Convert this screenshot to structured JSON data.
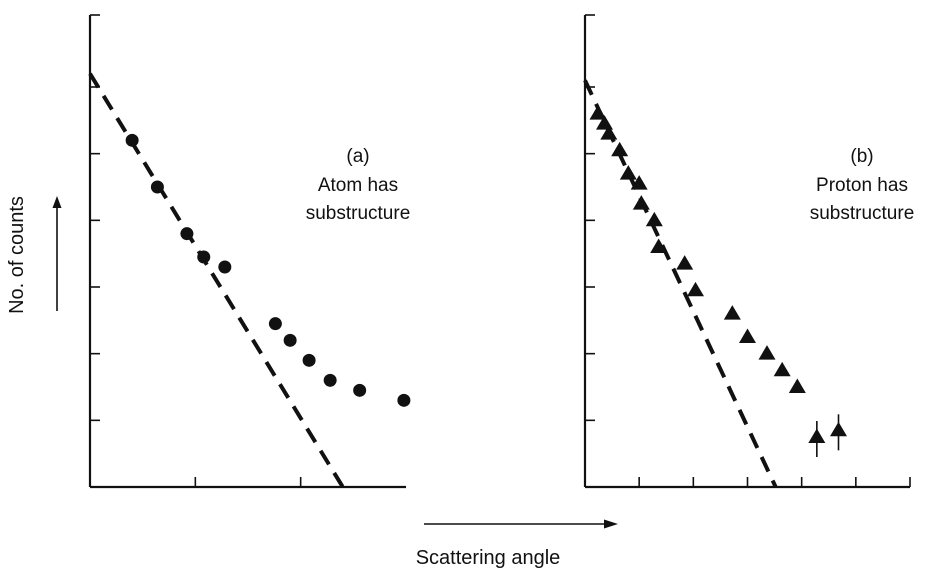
{
  "figure": {
    "xlabel": "Scattering angle",
    "ylabel": "No. of counts"
  },
  "chart_data": [
    {
      "type": "scatter",
      "panel_label": "(a)",
      "annotation_lines": [
        "Atom has",
        "substructure"
      ],
      "xlim": [
        0,
        7.5
      ],
      "ylim": [
        0,
        6
      ],
      "x_ticks": [
        2.5,
        5
      ],
      "y_ticks": [
        1,
        2,
        3,
        4,
        5,
        6
      ],
      "grid": false,
      "marker": "circle",
      "series": [
        {
          "points": [
            [
              1.0,
              5.2
            ],
            [
              1.6,
              4.5
            ],
            [
              2.3,
              3.8
            ],
            [
              2.7,
              3.45
            ],
            [
              3.2,
              3.3
            ],
            [
              4.4,
              2.45
            ],
            [
              4.75,
              2.2
            ],
            [
              5.2,
              1.9
            ],
            [
              5.7,
              1.6
            ],
            [
              6.4,
              1.45
            ],
            [
              7.45,
              1.3
            ]
          ]
        }
      ],
      "fit_line": {
        "style": "dashed",
        "points": [
          [
            0,
            6.2
          ],
          [
            6.0,
            0
          ]
        ]
      }
    },
    {
      "type": "scatter",
      "panel_label": "(b)",
      "annotation_lines": [
        "Proton has",
        "substructure"
      ],
      "xlim": [
        0,
        7.5
      ],
      "ylim": [
        0,
        6
      ],
      "x_ticks": [
        1.25,
        2.5,
        3.75,
        5,
        6.25,
        7.5
      ],
      "y_ticks": [
        1,
        2,
        3,
        4,
        5,
        6
      ],
      "grid": false,
      "marker": "triangle",
      "series": [
        {
          "points": [
            [
              0.3,
              5.6
            ],
            [
              0.45,
              5.45
            ],
            [
              0.55,
              5.3
            ],
            [
              0.8,
              5.05
            ],
            [
              1.0,
              4.7
            ],
            [
              1.25,
              4.55
            ],
            [
              1.3,
              4.25
            ],
            [
              1.6,
              4.0
            ],
            [
              1.7,
              3.6
            ],
            [
              2.3,
              3.35
            ],
            [
              2.55,
              2.95
            ],
            [
              3.4,
              2.6
            ],
            [
              3.75,
              2.25
            ],
            [
              4.2,
              2.0
            ],
            [
              4.55,
              1.75
            ],
            [
              4.9,
              1.5
            ],
            [
              5.35,
              0.75
            ],
            [
              5.85,
              0.85
            ]
          ],
          "lower_limit_points": [
            [
              5.35,
              0.75
            ],
            [
              5.85,
              0.85
            ]
          ]
        }
      ],
      "fit_line": {
        "style": "dashed",
        "points": [
          [
            0,
            6.1
          ],
          [
            4.4,
            0
          ]
        ]
      }
    }
  ]
}
